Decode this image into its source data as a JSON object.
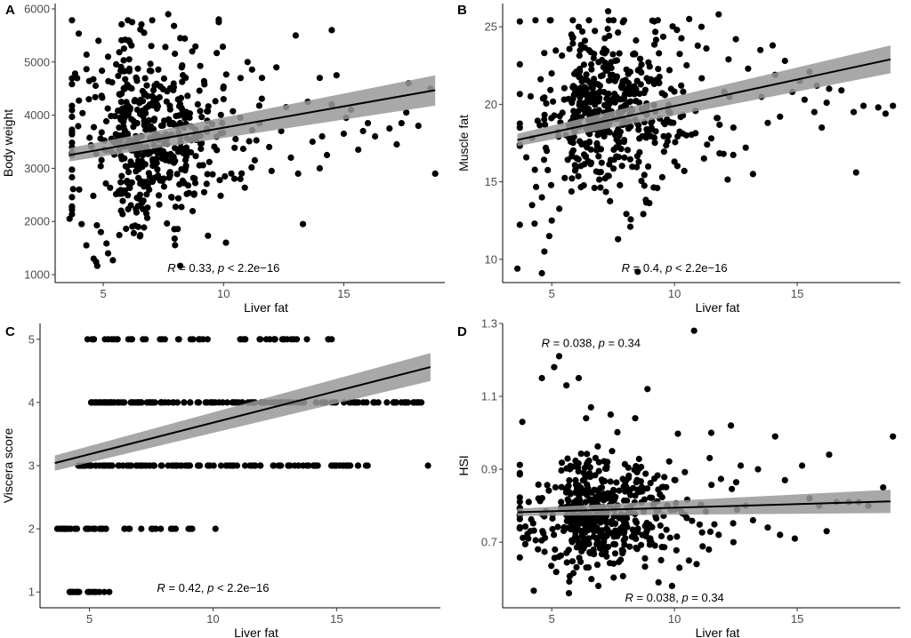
{
  "chart_data": [
    {
      "panel_label": "A",
      "type": "scatter",
      "xlabel": "Liver fat",
      "ylabel": "Body weight",
      "xlim": [
        3.0,
        19.2
      ],
      "ylim": [
        850,
        6100
      ],
      "xticks": [
        5,
        10,
        15
      ],
      "yticks": [
        1000,
        2000,
        3000,
        4000,
        5000,
        6000
      ],
      "fit": {
        "x": [
          3.6,
          18.8
        ],
        "y": [
          3250,
          4470
        ],
        "ci_lo": [
          3130,
          4180
        ],
        "ci_hi": [
          3380,
          4750
        ]
      },
      "annotation": {
        "r_label": "R",
        "r_text": " = 0.33, ",
        "p_label": "p",
        "p_text": " < 2.2e−16",
        "x": 10,
        "y": 1050
      },
      "points_note": "approx. 600 individual fish; positions estimated from the figure",
      "cluster": {
        "x_mean": 7.0,
        "x_sd": 2.1,
        "y_mean": 3600,
        "y_sd": 850,
        "n": 520,
        "seed": 11
      },
      "points": [
        [
          3.6,
          2050
        ],
        [
          4.0,
          2600
        ],
        [
          4.1,
          1950
        ],
        [
          4.3,
          1550
        ],
        [
          4.6,
          1300
        ],
        [
          4.7,
          1240
        ],
        [
          5.4,
          1270
        ],
        [
          5.2,
          1400
        ],
        [
          4.9,
          1800
        ],
        [
          4.4,
          4300
        ],
        [
          4.8,
          5400
        ],
        [
          5.2,
          5100
        ],
        [
          6.2,
          5750
        ],
        [
          6.7,
          5550
        ],
        [
          7.0,
          5300
        ],
        [
          7.7,
          5900
        ],
        [
          8.2,
          5450
        ],
        [
          8.7,
          5200
        ],
        [
          9.8,
          5800
        ],
        [
          9.8,
          5750
        ],
        [
          10.1,
          1600
        ],
        [
          11.0,
          5000
        ],
        [
          11.6,
          4700
        ],
        [
          12.2,
          4900
        ],
        [
          13.0,
          5500
        ],
        [
          13.3,
          1950
        ],
        [
          13.5,
          4250
        ],
        [
          14.0,
          4700
        ],
        [
          14.5,
          5600
        ],
        [
          14.7,
          4750
        ],
        [
          14.5,
          4200
        ],
        [
          14.1,
          3600
        ],
        [
          14.0,
          3000
        ],
        [
          15.0,
          3650
        ],
        [
          15.3,
          4100
        ],
        [
          15.6,
          3350
        ],
        [
          15.8,
          3700
        ],
        [
          16.0,
          3850
        ],
        [
          16.3,
          3600
        ],
        [
          16.9,
          3750
        ],
        [
          17.2,
          3450
        ],
        [
          17.4,
          3850
        ],
        [
          17.6,
          4050
        ],
        [
          17.7,
          4600
        ],
        [
          18.1,
          3800
        ],
        [
          18.6,
          4500
        ],
        [
          18.8,
          2900
        ],
        [
          11.9,
          3400
        ],
        [
          12.4,
          3700
        ],
        [
          12.8,
          3200
        ],
        [
          13.1,
          2900
        ],
        [
          11.3,
          3150
        ],
        [
          12.0,
          2950
        ],
        [
          10.7,
          2800
        ],
        [
          10.5,
          3550
        ],
        [
          11.5,
          3850
        ],
        [
          12.6,
          4150
        ],
        [
          13.7,
          3500
        ],
        [
          14.3,
          3250
        ],
        [
          15.1,
          3950
        ]
      ]
    },
    {
      "panel_label": "B",
      "type": "scatter",
      "xlabel": "Liver fat",
      "ylabel": "Muscle fat",
      "xlim": [
        3.0,
        19.2
      ],
      "ylim": [
        8.5,
        26.5
      ],
      "xticks": [
        5,
        10,
        15
      ],
      "yticks": [
        10,
        15,
        20,
        25
      ],
      "fit": {
        "x": [
          3.6,
          18.8
        ],
        "y": [
          17.7,
          22.9
        ],
        "ci_lo": [
          17.3,
          22.0
        ],
        "ci_hi": [
          18.1,
          23.8
        ]
      },
      "annotation": {
        "r_label": "R",
        "r_text": " = 0.4, ",
        "p_label": "p",
        "p_text": " < 2.2e−16",
        "x": 10,
        "y": 9.2
      },
      "points_note": "approx. 600 individual fish; positions estimated from the figure",
      "cluster": {
        "x_mean": 7.2,
        "x_sd": 2.0,
        "y_mean": 19.8,
        "y_sd": 2.6,
        "n": 520,
        "seed": 23
      },
      "points": [
        [
          3.6,
          9.4
        ],
        [
          4.6,
          9.1
        ],
        [
          4.7,
          10.5
        ],
        [
          4.9,
          11.5
        ],
        [
          5.0,
          12.5
        ],
        [
          4.3,
          12.3
        ],
        [
          4.2,
          13.5
        ],
        [
          8.2,
          12.1
        ],
        [
          8.5,
          9.2
        ],
        [
          7.7,
          11.3
        ],
        [
          4.6,
          14.0
        ],
        [
          5.8,
          24.5
        ],
        [
          6.1,
          25.0
        ],
        [
          7.3,
          26.0
        ],
        [
          7.9,
          25.3
        ],
        [
          9.1,
          25.4
        ],
        [
          10.1,
          24.8
        ],
        [
          10.6,
          25.5
        ],
        [
          11.1,
          25.0
        ],
        [
          11.8,
          25.8
        ],
        [
          12.5,
          24.2
        ],
        [
          13.5,
          23.5
        ],
        [
          14.0,
          23.8
        ],
        [
          14.5,
          22.8
        ],
        [
          15.1,
          21.5
        ],
        [
          15.5,
          22.1
        ],
        [
          15.8,
          21.2
        ],
        [
          16.3,
          21.0
        ],
        [
          16.8,
          20.9
        ],
        [
          17.3,
          19.5
        ],
        [
          17.4,
          15.6
        ],
        [
          17.7,
          19.9
        ],
        [
          18.3,
          19.8
        ],
        [
          18.6,
          19.4
        ],
        [
          18.9,
          19.9
        ],
        [
          16.0,
          18.5
        ],
        [
          15.7,
          19.5
        ],
        [
          15.3,
          20.3
        ],
        [
          14.3,
          19.2
        ],
        [
          13.8,
          18.8
        ],
        [
          13.2,
          15.5
        ],
        [
          12.9,
          17.2
        ],
        [
          12.4,
          18.5
        ],
        [
          12.0,
          16.8
        ],
        [
          11.2,
          16.5
        ],
        [
          11.5,
          17.8
        ],
        [
          10.4,
          15.7
        ],
        [
          10.0,
          16.3
        ],
        [
          9.3,
          14.6
        ],
        [
          9.5,
          15.3
        ],
        [
          16.2,
          20.1
        ],
        [
          14.8,
          20.8
        ],
        [
          14.1,
          21.9
        ],
        [
          13.0,
          22.3
        ],
        [
          12.2,
          22.9
        ],
        [
          11.3,
          23.6
        ]
      ]
    },
    {
      "panel_label": "C",
      "type": "scatter",
      "xlabel": "Liver fat",
      "ylabel": "Viscera score",
      "xlim": [
        3.0,
        19.2
      ],
      "ylim": [
        0.75,
        5.25
      ],
      "xticks": [
        5,
        10,
        15
      ],
      "yticks": [
        1,
        2,
        3,
        4,
        5
      ],
      "fit": {
        "x": [
          3.6,
          18.8
        ],
        "y": [
          3.04,
          4.56
        ],
        "ci_lo": [
          2.92,
          4.34
        ],
        "ci_hi": [
          3.16,
          4.78
        ]
      },
      "annotation": {
        "r_label": "R",
        "r_text": " = 0.42, ",
        "p_label": "p",
        "p_text": " < 2.2e−16",
        "x": 10,
        "y": 1.0
      },
      "points_note": "values at discrete scores; positions estimated from the figure",
      "levels": [
        {
          "y": 1,
          "xmin": 4.2,
          "xmax": 5.9,
          "n": 10,
          "extra": [
            4.2,
            4.3,
            4.4,
            5.0,
            5.2,
            5.4,
            5.6,
            5.8
          ]
        },
        {
          "y": 2,
          "xmin": 3.8,
          "xmax": 9.2,
          "n": 40,
          "extra": [
            3.7,
            3.9,
            10.1
          ]
        },
        {
          "y": 3,
          "xmin": 4.5,
          "xmax": 16.3,
          "n": 130,
          "extra": [
            18.7
          ]
        },
        {
          "y": 4,
          "xmin": 5.0,
          "xmax": 18.6,
          "n": 150,
          "extra": [
            17.3,
            17.8
          ]
        },
        {
          "y": 5,
          "xmin": 4.9,
          "xmax": 15.0,
          "n": 45,
          "extra": [
            11.3,
            12.5,
            13.0,
            13.8,
            14.8
          ]
        }
      ],
      "seed": 37
    },
    {
      "panel_label": "D",
      "type": "scatter",
      "xlabel": "Liver fat",
      "ylabel": "HSI",
      "xlim": [
        3.0,
        19.2
      ],
      "ylim": [
        0.52,
        1.3
      ],
      "xticks": [
        5,
        10,
        15
      ],
      "yticks": [
        0.7,
        0.9,
        1.1,
        1.3
      ],
      "ytick_labels": [
        "0.7",
        "0.9",
        "1.1",
        "1.3"
      ],
      "fit": {
        "x": [
          3.6,
          18.8
        ],
        "y": [
          0.782,
          0.812
        ],
        "ci_lo": [
          0.772,
          0.78
        ],
        "ci_hi": [
          0.792,
          0.844
        ]
      },
      "annotation": {
        "r_label": "R",
        "r_text": " = 0.038, ",
        "p_label": "p",
        "p_text": " = 0.34",
        "x": 10,
        "y": 0.537
      },
      "annotation2": {
        "r_label": "R",
        "r_text": " = 0.038, ",
        "p_label": "p",
        "p_text": " = 0.34",
        "x": 6.6,
        "y": 1.235
      },
      "points_note": "approx. 600 individual fish; positions estimated from the figure",
      "cluster": {
        "x_mean": 7.0,
        "x_sd": 2.2,
        "y_mean": 0.78,
        "y_sd": 0.075,
        "n": 520,
        "seed": 53
      },
      "points": [
        [
          3.8,
          1.03
        ],
        [
          4.6,
          1.15
        ],
        [
          5.1,
          1.18
        ],
        [
          5.3,
          1.21
        ],
        [
          5.6,
          1.13
        ],
        [
          6.1,
          1.15
        ],
        [
          6.6,
          1.07
        ],
        [
          6.4,
          1.04
        ],
        [
          7.4,
          1.05
        ],
        [
          8.4,
          1.04
        ],
        [
          8.9,
          1.12
        ],
        [
          10.8,
          1.28
        ],
        [
          9.9,
          0.58
        ],
        [
          5.7,
          0.56
        ],
        [
          6.9,
          0.58
        ],
        [
          11.5,
          1.0
        ],
        [
          12.3,
          1.02
        ],
        [
          12.7,
          0.91
        ],
        [
          13.4,
          0.9
        ],
        [
          14.1,
          0.99
        ],
        [
          14.5,
          0.87
        ],
        [
          15.2,
          0.91
        ],
        [
          15.5,
          0.82
        ],
        [
          15.9,
          0.8
        ],
        [
          16.3,
          0.94
        ],
        [
          16.6,
          0.81
        ],
        [
          16.2,
          0.73
        ],
        [
          17.1,
          0.81
        ],
        [
          17.5,
          0.81
        ],
        [
          17.9,
          0.8
        ],
        [
          18.5,
          0.85
        ],
        [
          18.9,
          0.99
        ],
        [
          14.3,
          0.72
        ],
        [
          14.9,
          0.71
        ],
        [
          13.8,
          0.74
        ],
        [
          13.2,
          0.76
        ],
        [
          12.9,
          0.8
        ],
        [
          12.4,
          0.7
        ],
        [
          11.8,
          0.72
        ],
        [
          11.4,
          0.68
        ],
        [
          10.9,
          0.64
        ],
        [
          10.2,
          0.63
        ]
      ]
    }
  ]
}
